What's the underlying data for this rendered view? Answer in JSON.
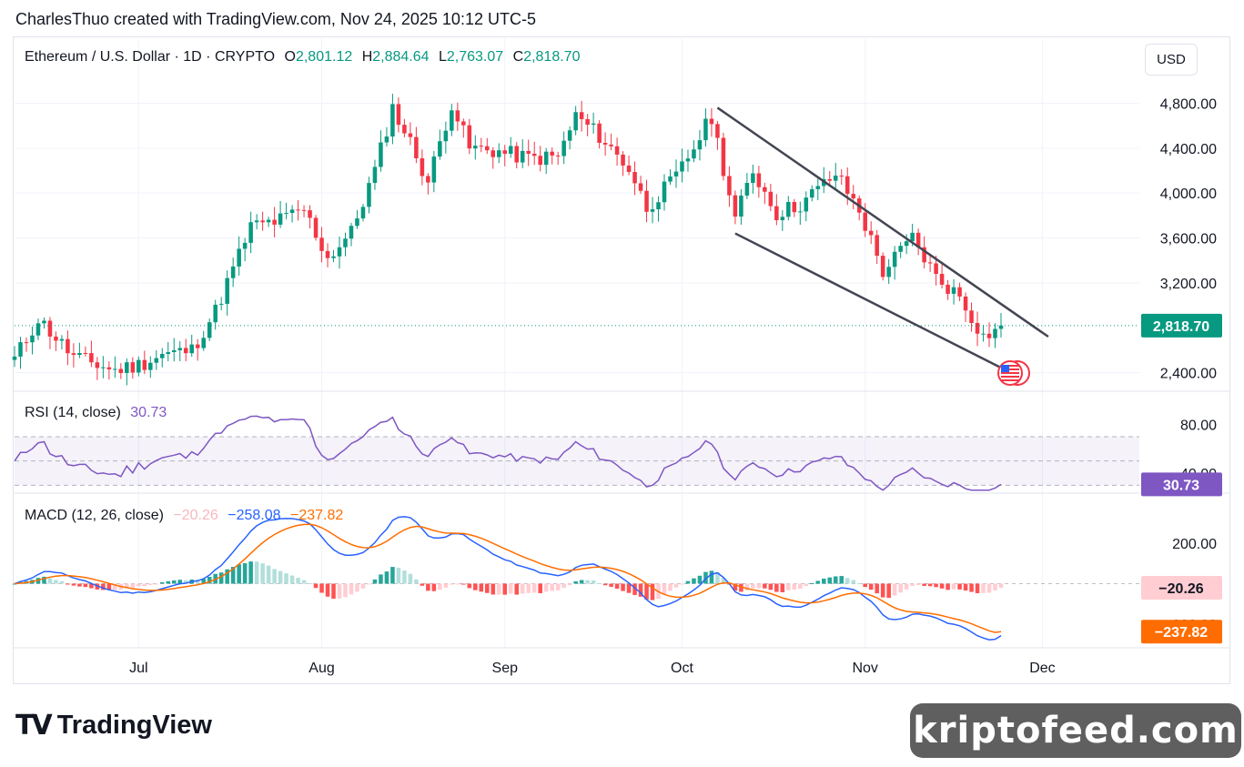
{
  "header": {
    "attribution": "CharlesThuo created with TradingView.com, Nov 24, 2025 10:12 UTC-5"
  },
  "legend": {
    "symbol": "Ethereum / U.S. Dollar · 1D · CRYPTO",
    "open_label": "O",
    "open": "2,801.12",
    "high_label": "H",
    "high": "2,884.64",
    "low_label": "L",
    "low": "2,763.07",
    "close_label": "C",
    "close": "2,818.70"
  },
  "currency_button": "USD",
  "rsi": {
    "label": "RSI (14, close)",
    "value": "30.73",
    "scale": [
      "80.00",
      "40.00"
    ],
    "badge": "30.73"
  },
  "macd": {
    "label": "MACD (12, 26, close)",
    "histogram": "−20.26",
    "macd_line": "−258.08",
    "signal_line": "−237.82",
    "scale": [
      "200.00",
      "−200.00"
    ],
    "badge_histogram": "−20.26",
    "badge_signal": "−237.82"
  },
  "price_badge": "2,818.70",
  "footer": {
    "brand": "TradingView",
    "watermark": "kriptofeed.com"
  },
  "colors": {
    "up": "#089981",
    "down": "#f23645",
    "rsi": "#7e57c2",
    "macd": "#2962ff",
    "signal": "#ff6d00",
    "trendline": "#434651"
  },
  "chart_data": {
    "type": "candlestick",
    "interval": "1D",
    "y_axis": {
      "labels": [
        "4,800.00",
        "4,400.00",
        "4,000.00",
        "3,600.00",
        "3,200.00",
        "2,400.00"
      ],
      "range": [
        2250,
        4950
      ]
    },
    "x_axis": {
      "labels": [
        "Jul",
        "Aug",
        "Sep",
        "Oct",
        "Nov",
        "Dec"
      ]
    },
    "price_path_approx": [
      [
        "2025-06-10",
        2520
      ],
      [
        "2025-06-14",
        2880
      ],
      [
        "2025-06-20",
        2540
      ],
      [
        "2025-06-27",
        2420
      ],
      [
        "2025-07-01",
        2470
      ],
      [
        "2025-07-05",
        2560
      ],
      [
        "2025-07-10",
        2600
      ],
      [
        "2025-07-14",
        2950
      ],
      [
        "2025-07-20",
        3700
      ],
      [
        "2025-07-25",
        3760
      ],
      [
        "2025-07-29",
        3850
      ],
      [
        "2025-08-02",
        3420
      ],
      [
        "2025-08-06",
        3650
      ],
      [
        "2025-08-10",
        4200
      ],
      [
        "2025-08-13",
        4760
      ],
      [
        "2025-08-16",
        4450
      ],
      [
        "2025-08-19",
        4100
      ],
      [
        "2025-08-23",
        4800
      ],
      [
        "2025-08-26",
        4400
      ],
      [
        "2025-08-30",
        4380
      ],
      [
        "2025-09-05",
        4310
      ],
      [
        "2025-09-10",
        4320
      ],
      [
        "2025-09-13",
        4690
      ],
      [
        "2025-09-17",
        4510
      ],
      [
        "2025-09-22",
        4220
      ],
      [
        "2025-09-25",
        3870
      ],
      [
        "2025-09-30",
        4140
      ],
      [
        "2025-10-06",
        4680
      ],
      [
        "2025-10-10",
        3770
      ],
      [
        "2025-10-13",
        4200
      ],
      [
        "2025-10-17",
        3820
      ],
      [
        "2025-10-21",
        3900
      ],
      [
        "2025-10-27",
        4170
      ],
      [
        "2025-10-31",
        3850
      ],
      [
        "2025-11-04",
        3300
      ],
      [
        "2025-11-09",
        3600
      ],
      [
        "2025-11-13",
        3250
      ],
      [
        "2025-11-17",
        3080
      ],
      [
        "2025-11-21",
        2720
      ],
      [
        "2025-11-24",
        2818.7
      ]
    ],
    "channel": {
      "upper": [
        [
          "2025-10-07",
          4760
        ],
        [
          "2025-12-02",
          2720
        ]
      ],
      "lower": [
        [
          "2025-10-10",
          3640
        ],
        [
          "2025-11-26",
          2390
        ]
      ]
    },
    "rsi_last": 30.73,
    "macd_last": {
      "macd": -258.08,
      "signal": -237.82,
      "histogram": -20.26
    }
  }
}
